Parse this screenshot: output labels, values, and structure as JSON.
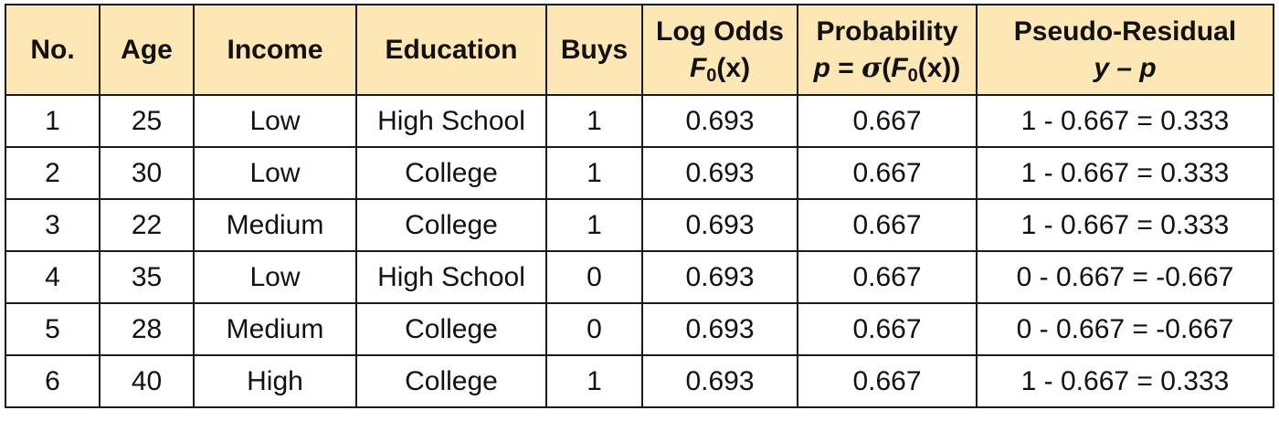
{
  "table": {
    "headers": {
      "no": "No.",
      "age": "Age",
      "income": "Income",
      "education": "Education",
      "buys": "Buys",
      "log_odds": "Log Odds",
      "log_odds_formula": {
        "fn": "F",
        "sub": "0",
        "arg": "(x)"
      },
      "probability": "Probability",
      "probability_formula": {
        "p": "p",
        "eq": " = ",
        "sigma": "σ",
        "open": "(",
        "fn": "F",
        "sub": "0",
        "arg": "(x))"
      },
      "pseudo_residual": "Pseudo-Residual",
      "pseudo_residual_formula": "y – p"
    },
    "rows": [
      {
        "no": "1",
        "age": "25",
        "income": "Low",
        "education": "High School",
        "buys": "1",
        "log_odds": "0.693",
        "probability": "0.667",
        "residual": "1 - 0.667 = 0.333"
      },
      {
        "no": "2",
        "age": "30",
        "income": "Low",
        "education": "College",
        "buys": "1",
        "log_odds": "0.693",
        "probability": "0.667",
        "residual": "1 - 0.667 = 0.333"
      },
      {
        "no": "3",
        "age": "22",
        "income": "Medium",
        "education": "College",
        "buys": "1",
        "log_odds": "0.693",
        "probability": "0.667",
        "residual": "1 - 0.667 = 0.333"
      },
      {
        "no": "4",
        "age": "35",
        "income": "Low",
        "education": "High School",
        "buys": "0",
        "log_odds": "0.693",
        "probability": "0.667",
        "residual": "0 - 0.667 = -0.667"
      },
      {
        "no": "5",
        "age": "28",
        "income": "Medium",
        "education": "College",
        "buys": "0",
        "log_odds": "0.693",
        "probability": "0.667",
        "residual": "0 - 0.667 = -0.667"
      },
      {
        "no": "6",
        "age": "40",
        "income": "High",
        "education": "College",
        "buys": "1",
        "log_odds": "0.693",
        "probability": "0.667",
        "residual": "1 - 0.667 = 0.333"
      }
    ]
  },
  "colors": {
    "header_background": "#fde7b4",
    "border": "#1a1a1a",
    "text": "#111111"
  }
}
